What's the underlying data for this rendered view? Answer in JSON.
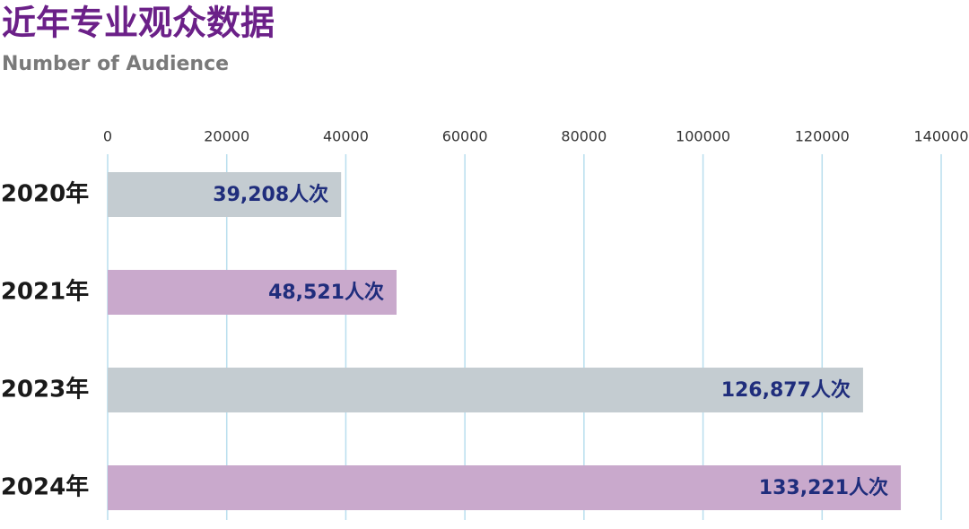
{
  "chart_data": {
    "type": "barh",
    "title": "近年专业观众数据",
    "subtitle": "Number of Audience",
    "categories": [
      "2020年",
      "2021年",
      "2023年",
      "2024年"
    ],
    "values": [
      39208,
      48521,
      126877,
      133221
    ],
    "value_labels": [
      "39,208人次",
      "48,521人次",
      "126,877人次",
      "133,221人次"
    ],
    "colors": [
      "#c4ccd1",
      "#c9a9cc",
      "#c4ccd1",
      "#c9a9cc"
    ],
    "xlim": [
      0,
      140000
    ],
    "xticks": [
      0,
      20000,
      40000,
      60000,
      80000,
      100000,
      120000,
      140000
    ],
    "grid": true,
    "grid_color": "#b9deee"
  }
}
